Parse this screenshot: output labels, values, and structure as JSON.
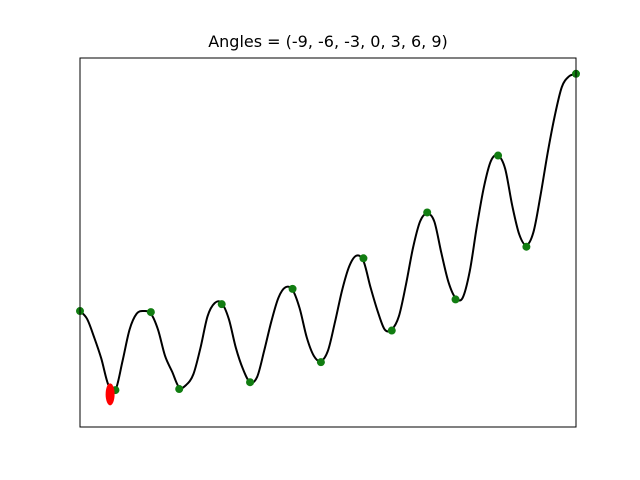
{
  "chart_data": {
    "type": "line",
    "title": "Angles = (-9, -6, -3, 0, 3, 6, 9)",
    "xlabel": "",
    "ylabel": "",
    "xlim": [
      0,
      14
    ],
    "ylim": [
      -0.5,
      6.5
    ],
    "grid": false,
    "axis_ticks": false,
    "series": [
      {
        "kind": "curve",
        "color": "#000000",
        "points": [
          [
            0.0,
            1.7
          ],
          [
            0.2,
            1.55
          ],
          [
            0.4,
            1.2
          ],
          [
            0.6,
            0.8
          ],
          [
            0.8,
            0.3
          ],
          [
            1.0,
            0.2
          ],
          [
            1.2,
            0.75
          ],
          [
            1.4,
            1.35
          ],
          [
            1.6,
            1.65
          ],
          [
            1.8,
            1.7
          ],
          [
            2.0,
            1.65
          ],
          [
            2.2,
            1.35
          ],
          [
            2.4,
            0.85
          ],
          [
            2.6,
            0.55
          ],
          [
            2.8,
            0.25
          ],
          [
            3.0,
            0.3
          ],
          [
            3.2,
            0.5
          ],
          [
            3.4,
            1.0
          ],
          [
            3.6,
            1.6
          ],
          [
            3.8,
            1.85
          ],
          [
            4.0,
            1.85
          ],
          [
            4.2,
            1.55
          ],
          [
            4.4,
            1.0
          ],
          [
            4.6,
            0.6
          ],
          [
            4.8,
            0.35
          ],
          [
            5.0,
            0.45
          ],
          [
            5.2,
            0.95
          ],
          [
            5.4,
            1.5
          ],
          [
            5.6,
            1.95
          ],
          [
            5.8,
            2.15
          ],
          [
            6.0,
            2.1
          ],
          [
            6.2,
            1.75
          ],
          [
            6.4,
            1.2
          ],
          [
            6.6,
            0.85
          ],
          [
            6.8,
            0.75
          ],
          [
            7.0,
            0.95
          ],
          [
            7.2,
            1.5
          ],
          [
            7.4,
            2.1
          ],
          [
            7.6,
            2.55
          ],
          [
            7.8,
            2.75
          ],
          [
            8.0,
            2.65
          ],
          [
            8.2,
            2.15
          ],
          [
            8.4,
            1.7
          ],
          [
            8.6,
            1.35
          ],
          [
            8.8,
            1.35
          ],
          [
            9.0,
            1.6
          ],
          [
            9.2,
            2.2
          ],
          [
            9.4,
            2.9
          ],
          [
            9.6,
            3.4
          ],
          [
            9.8,
            3.55
          ],
          [
            10.0,
            3.4
          ],
          [
            10.2,
            2.8
          ],
          [
            10.4,
            2.25
          ],
          [
            10.6,
            1.95
          ],
          [
            10.8,
            1.95
          ],
          [
            11.0,
            2.45
          ],
          [
            11.2,
            3.3
          ],
          [
            11.4,
            4.05
          ],
          [
            11.6,
            4.55
          ],
          [
            11.8,
            4.65
          ],
          [
            12.0,
            4.4
          ],
          [
            12.2,
            3.7
          ],
          [
            12.4,
            3.15
          ],
          [
            12.6,
            2.95
          ],
          [
            12.8,
            3.2
          ],
          [
            13.0,
            3.9
          ],
          [
            13.2,
            4.7
          ],
          [
            13.4,
            5.4
          ],
          [
            13.6,
            5.95
          ],
          [
            13.8,
            6.15
          ],
          [
            14.0,
            6.2
          ]
        ]
      },
      {
        "kind": "markers",
        "color": "#117d11",
        "points": [
          [
            0.0,
            1.7
          ],
          [
            1.0,
            0.2
          ],
          [
            2.0,
            1.68
          ],
          [
            2.8,
            0.22
          ],
          [
            4.0,
            1.83
          ],
          [
            4.8,
            0.35
          ],
          [
            6.0,
            2.12
          ],
          [
            6.8,
            0.73
          ],
          [
            8.0,
            2.7
          ],
          [
            8.8,
            1.33
          ],
          [
            9.8,
            3.57
          ],
          [
            10.6,
            1.92
          ],
          [
            11.8,
            4.65
          ],
          [
            12.6,
            2.92
          ],
          [
            14.0,
            6.2
          ]
        ]
      },
      {
        "kind": "highlight",
        "color": "#ff0000",
        "points": [
          [
            0.85,
            0.12
          ]
        ]
      }
    ]
  }
}
